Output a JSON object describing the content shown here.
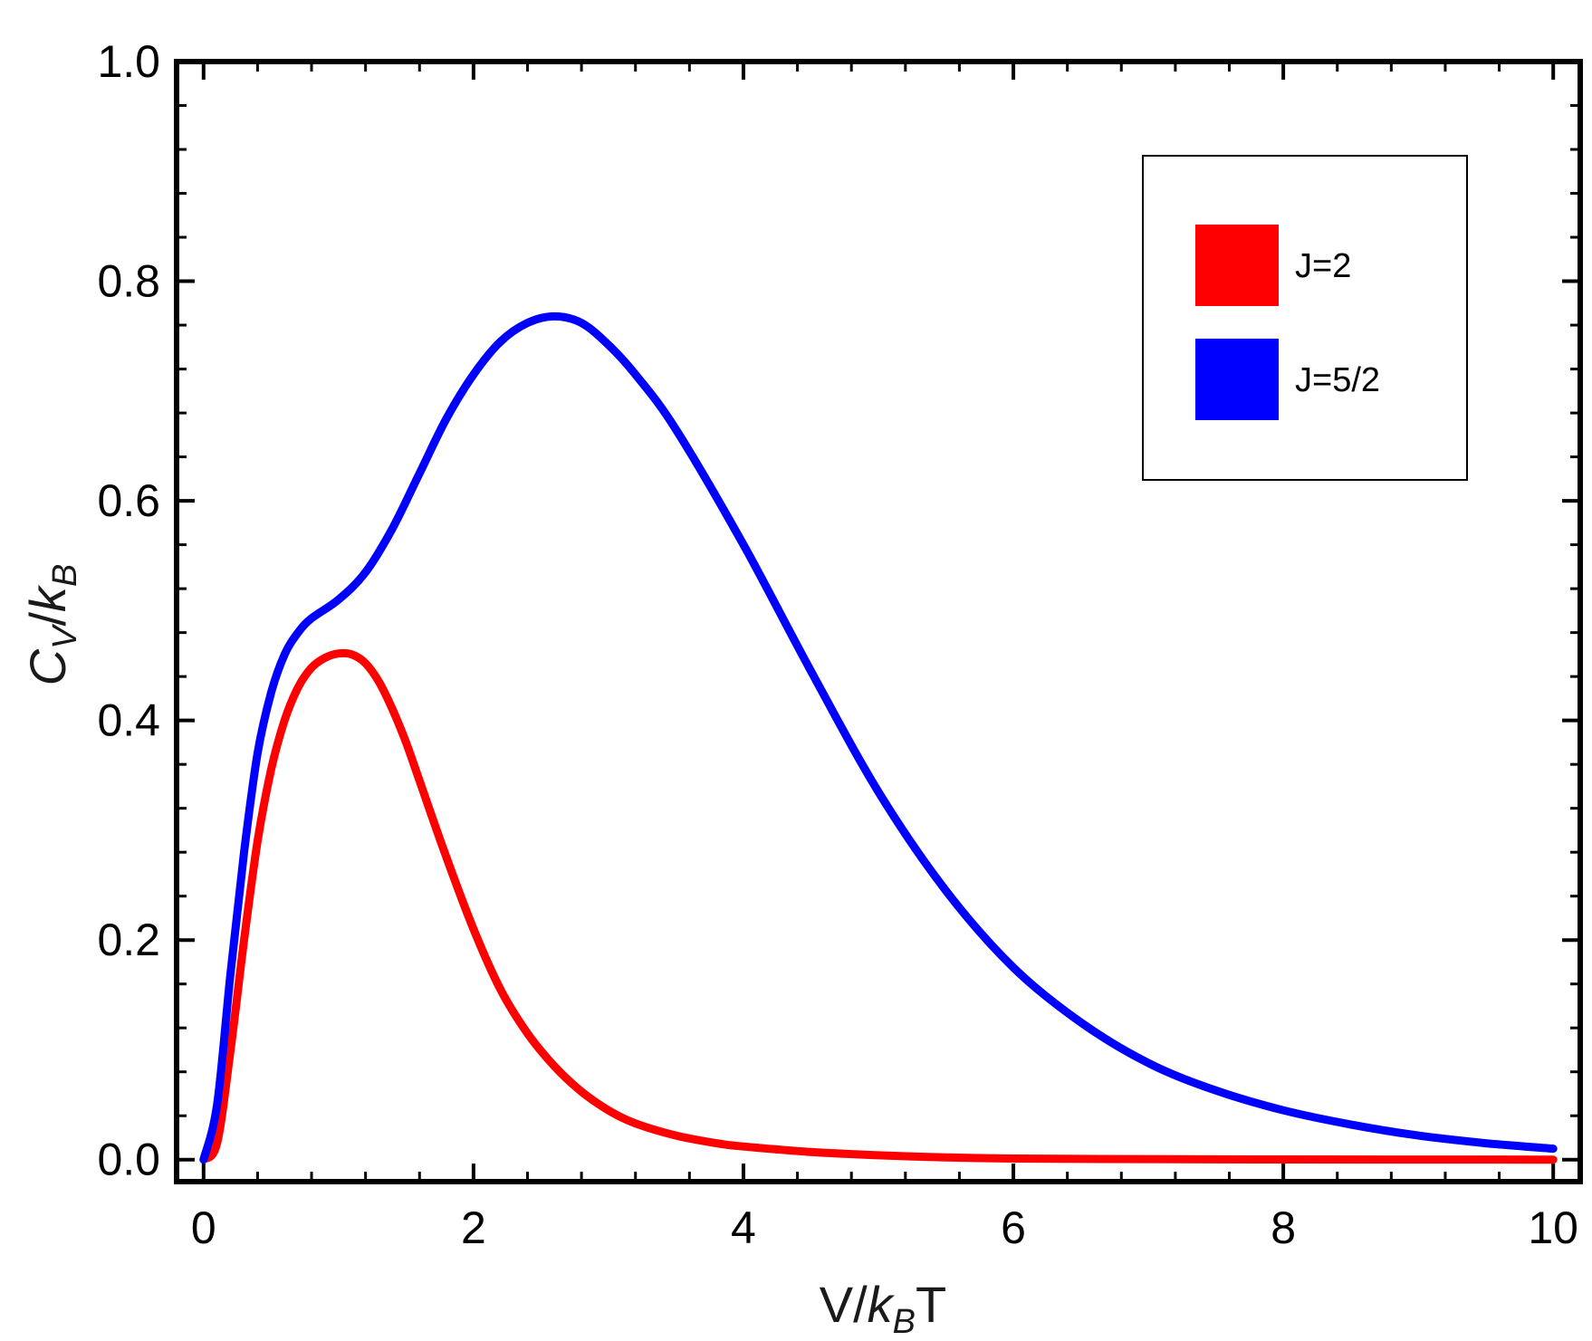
{
  "chart_data": {
    "type": "line",
    "title": "",
    "xlabel": {
      "base": "V/",
      "var": "k",
      "sub": "B",
      "tail": "T"
    },
    "ylabel": {
      "var": "C",
      "sub": "V",
      "mid": "/",
      "var2": "k",
      "sub2": "B"
    },
    "xlim": [
      -0.2,
      10.2
    ],
    "ylim": [
      -0.02,
      1.0
    ],
    "xticks": [
      0,
      2,
      4,
      6,
      8,
      10
    ],
    "xtick_labels": [
      "0",
      "2",
      "4",
      "6",
      "8",
      "10"
    ],
    "yticks": [
      0.0,
      0.2,
      0.4,
      0.6,
      0.8,
      1.0
    ],
    "ytick_labels": [
      "0.0",
      "0.2",
      "0.4",
      "0.6",
      "0.8",
      "1.0"
    ],
    "grid": false,
    "legend_position": "top-right",
    "series": [
      {
        "name": "J=2",
        "color": "#ff0000",
        "x": [
          0,
          0.1,
          0.2,
          0.3,
          0.4,
          0.5,
          0.6,
          0.7,
          0.8,
          0.9,
          1.0,
          1.1,
          1.2,
          1.3,
          1.4,
          1.5,
          1.6,
          1.8,
          2.0,
          2.2,
          2.4,
          2.6,
          2.8,
          3.0,
          3.2,
          3.5,
          3.8,
          4.0,
          4.5,
          5.0,
          5.5,
          6.0,
          7.0,
          8.0,
          9.0,
          10.0
        ],
        "y": [
          0.0,
          0.015,
          0.1,
          0.2,
          0.29,
          0.355,
          0.4,
          0.43,
          0.448,
          0.457,
          0.461,
          0.46,
          0.452,
          0.435,
          0.41,
          0.38,
          0.345,
          0.275,
          0.21,
          0.155,
          0.115,
          0.085,
          0.062,
          0.045,
          0.033,
          0.022,
          0.015,
          0.012,
          0.007,
          0.004,
          0.002,
          0.001,
          0.0005,
          0.0002,
          0.0001,
          0.0
        ]
      },
      {
        "name": "J=5/2",
        "color": "#0000ff",
        "x": [
          0,
          0.1,
          0.2,
          0.3,
          0.4,
          0.5,
          0.6,
          0.7,
          0.8,
          1.0,
          1.2,
          1.4,
          1.6,
          1.8,
          2.0,
          2.2,
          2.4,
          2.6,
          2.8,
          3.0,
          3.2,
          3.5,
          4.0,
          4.5,
          5.0,
          5.5,
          6.0,
          6.5,
          7.0,
          7.5,
          8.0,
          8.5,
          9.0,
          9.5,
          10.0
        ],
        "y": [
          0.0,
          0.05,
          0.17,
          0.28,
          0.37,
          0.425,
          0.46,
          0.48,
          0.493,
          0.51,
          0.535,
          0.575,
          0.625,
          0.675,
          0.715,
          0.745,
          0.762,
          0.768,
          0.762,
          0.742,
          0.715,
          0.665,
          0.56,
          0.445,
          0.335,
          0.245,
          0.175,
          0.125,
          0.088,
          0.063,
          0.045,
          0.032,
          0.022,
          0.015,
          0.01
        ]
      }
    ]
  }
}
